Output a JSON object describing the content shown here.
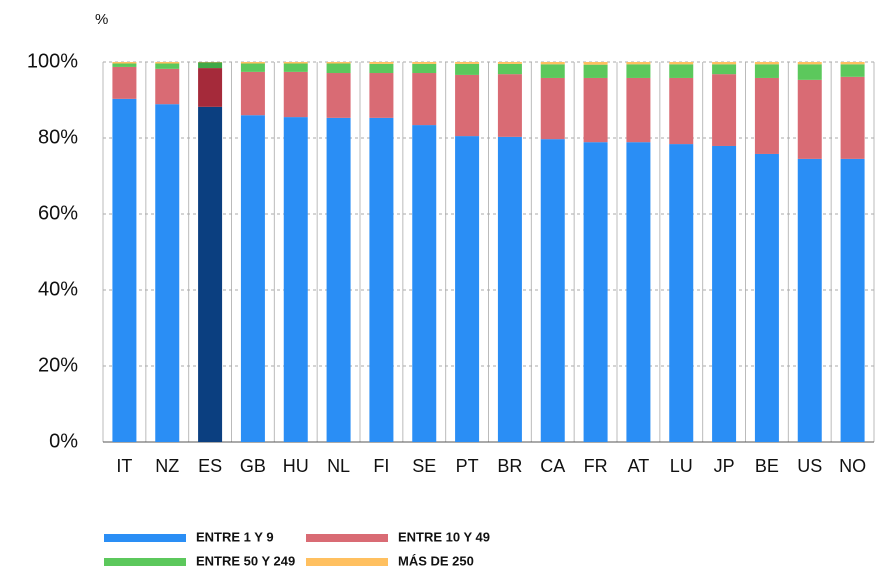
{
  "chart_data": {
    "type": "stacked_bar",
    "y_label": "%",
    "categories": [
      "IT",
      "NZ",
      "ES",
      "GB",
      "HU",
      "NL",
      "FI",
      "SE",
      "PT",
      "BR",
      "CA",
      "FR",
      "AT",
      "LU",
      "JP",
      "BE",
      "US",
      "NO"
    ],
    "highlight": "ES",
    "series": [
      {
        "name": "ENTRE 1 Y 9",
        "color": "#2a8ef5",
        "highlight_color": "#0b3f80",
        "values": [
          90.3,
          88.9,
          88.2,
          86.0,
          85.5,
          85.3,
          85.3,
          83.4,
          80.5,
          80.3,
          79.7,
          78.9,
          78.9,
          78.4,
          77.9,
          75.8,
          74.5,
          74.5
        ]
      },
      {
        "name": "ENTRE 10 Y 49",
        "color": "#d96b74",
        "highlight_color": "#a52a3a",
        "values": [
          8.4,
          9.3,
          10.2,
          11.4,
          11.9,
          11.8,
          11.8,
          13.7,
          16.1,
          16.5,
          16.1,
          16.9,
          16.9,
          17.4,
          18.9,
          20.0,
          20.8,
          21.6
        ]
      },
      {
        "name": "ENTRE 50 Y 249",
        "color": "#5cc85c",
        "highlight_color": "#3fa847",
        "values": [
          0.9,
          1.4,
          1.5,
          2.2,
          2.2,
          2.5,
          2.4,
          2.4,
          2.9,
          2.7,
          3.6,
          3.5,
          3.6,
          3.6,
          2.6,
          3.6,
          4.1,
          3.3
        ]
      },
      {
        "name": "MÁS DE 250",
        "color": "#ffc060",
        "highlight_color": "#e0a040",
        "values": [
          0.4,
          0.4,
          0.1,
          0.4,
          0.4,
          0.4,
          0.5,
          0.5,
          0.5,
          0.5,
          0.6,
          0.7,
          0.6,
          0.6,
          0.6,
          0.6,
          0.6,
          0.6
        ]
      }
    ],
    "ylim": [
      0,
      100
    ],
    "yticks": [
      {
        "value": 0,
        "label": "0%"
      },
      {
        "value": 20,
        "label": "20%"
      },
      {
        "value": 40,
        "label": "40%"
      },
      {
        "value": 60,
        "label": "60%"
      },
      {
        "value": 80,
        "label": "80%"
      },
      {
        "value": 100,
        "label": "100%"
      }
    ],
    "grid": true
  }
}
